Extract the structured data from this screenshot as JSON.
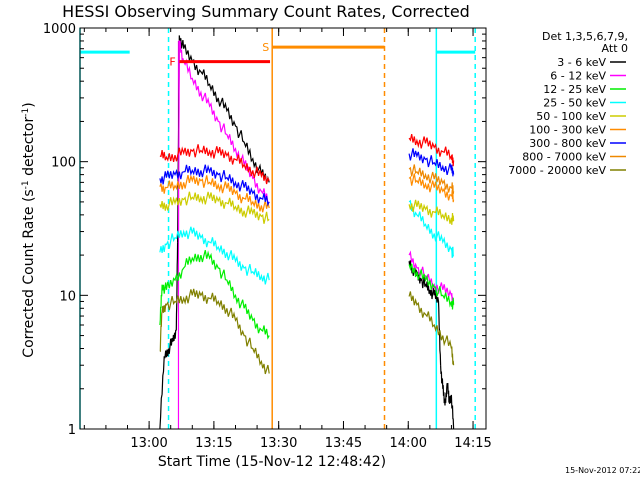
{
  "chart_data": {
    "type": "line",
    "title": "HESSI Observing Summary Count Rates, Corrected",
    "xlabel": "Start Time (15-Nov-12 12:48:42)",
    "ylabel": "Corrected Count Rate (s⁻¹ detector⁻¹)",
    "ylabel_main": "Corrected Count Rate (s",
    "ylabel_sup1": "-1",
    "ylabel_mid": " detector",
    "ylabel_sup2": "-1",
    "ylabel_end": ")",
    "yscale": "log",
    "ylim": [
      1,
      1000
    ],
    "xlim_min": [
      -16,
      78
    ],
    "y_ticks": [
      {
        "value": 1,
        "label": "1"
      },
      {
        "value": 10,
        "label": "10"
      },
      {
        "value": 100,
        "label": "100"
      },
      {
        "value": 1000,
        "label": "1000"
      }
    ],
    "x_ticks": [
      {
        "value": 0,
        "label": "13:00"
      },
      {
        "value": 15,
        "label": "13:15"
      },
      {
        "value": 30,
        "label": "13:30"
      },
      {
        "value": 45,
        "label": "13:45"
      },
      {
        "value": 60,
        "label": "14:00"
      },
      {
        "value": 75,
        "label": "14:15"
      }
    ],
    "legend": {
      "header": [
        "Det 1,3,5,6,7,9,",
        "Att 0"
      ],
      "position": "right"
    },
    "series": [
      {
        "name": "3 - 6 keV",
        "color": "#000000",
        "segments": [
          {
            "x": [
              2.5,
              3.5,
              4.5,
              5.5,
              6.3,
              6.6
            ],
            "y": [
              1,
              3.5,
              4.0,
              4.5,
              5.5,
              25
            ]
          },
          {
            "x": [
              6.6,
              7.0,
              8,
              10,
              12,
              14,
              16,
              18,
              20,
              22,
              24,
              26,
              27.8
            ],
            "y": [
              25,
              880,
              700,
              560,
              470,
              380,
              300,
              240,
              185,
              140,
              105,
              80,
              70
            ]
          },
          {
            "x": [
              60.2,
              61,
              62,
              63,
              64,
              65,
              66,
              67,
              67.5
            ],
            "y": [
              18,
              16,
              14,
              13,
              12,
              11,
              10,
              9,
              3
            ]
          },
          {
            "x": [
              67.5,
              68,
              68.5,
              69,
              69.5,
              70,
              70.5
            ],
            "y": [
              3,
              2,
              1.5,
              2.2,
              1.6,
              1.8,
              1
            ]
          }
        ]
      },
      {
        "name": "6 - 12 keV",
        "color": "#ff00ff",
        "segments": [
          {
            "x": [
              6.8,
              7,
              8,
              10,
              12,
              14,
              16,
              18,
              20,
              22,
              24,
              26,
              27.8
            ],
            "y": [
              30,
              800,
              560,
              420,
              330,
              260,
              200,
              160,
              125,
              95,
              75,
              60,
              50
            ]
          },
          {
            "x": [
              60.2,
              62,
              64,
              66,
              68,
              70,
              70.5
            ],
            "y": [
              20,
              16,
              14,
              12,
              11,
              10,
              9
            ]
          }
        ]
      },
      {
        "name": "12 - 25 keV",
        "color": "#00ee00",
        "segments": [
          {
            "x": [
              2.5,
              3,
              4,
              6,
              8,
              10,
              12,
              14,
              16,
              18,
              20,
              22,
              24,
              26,
              27.8
            ],
            "y": [
              6,
              12,
              11,
              13,
              16,
              19,
              20,
              19,
              16,
              13,
              10,
              8,
              6.5,
              5.5,
              5
            ]
          },
          {
            "x": [
              60.2,
              62,
              64,
              66,
              68,
              70,
              70.5
            ],
            "y": [
              17,
              15,
              13,
              11.5,
              10,
              9,
              8.5
            ]
          }
        ]
      },
      {
        "name": "25 - 50 keV",
        "color": "#00ffff",
        "segments": [
          {
            "x": [
              2.5,
              4,
              6,
              8,
              10,
              12,
              14,
              16,
              18,
              20,
              22,
              24,
              26,
              27.8
            ],
            "y": [
              21,
              24,
              27,
              30,
              29,
              27,
              25,
              23,
              21,
              18,
              16,
              15,
              14,
              13
            ]
          },
          {
            "x": [
              60.2,
              62,
              64,
              66,
              68,
              70,
              70.5
            ],
            "y": [
              50,
              40,
              34,
              29,
              25,
              22,
              20
            ]
          }
        ]
      },
      {
        "name": "50 - 100 keV",
        "color": "#cccc00",
        "segments": [
          {
            "x": [
              2.5,
              4,
              6,
              8,
              10,
              12,
              14,
              16,
              18,
              20,
              22,
              24,
              26,
              27.8
            ],
            "y": [
              48,
              48,
              49,
              52,
              54,
              54,
              53,
              51,
              49,
              46,
              43,
              41,
              39,
              37
            ]
          },
          {
            "x": [
              60.2,
              62,
              64,
              66,
              68,
              70,
              70.5
            ],
            "y": [
              48,
              46,
              44,
              42,
              40,
              38,
              36
            ]
          }
        ]
      },
      {
        "name": "100 - 300 keV",
        "color": "#ff8c00",
        "segments": [
          {
            "x": [
              2.5,
              4,
              6,
              8,
              10,
              12,
              14,
              16,
              18,
              20,
              22,
              24,
              26,
              27.8
            ],
            "y": [
              65,
              64,
              66,
              70,
              72,
              72,
              70,
              67,
              63,
              58,
              53,
              50,
              47,
              45
            ]
          },
          {
            "x": [
              60.2,
              62,
              64,
              66,
              68,
              70,
              70.5
            ],
            "y": [
              75,
              72,
              68,
              64,
              60,
              56,
              52
            ]
          }
        ]
      },
      {
        "name": "300 - 800 keV",
        "color": "#0000ff",
        "segments": [
          {
            "x": [
              2.5,
              4,
              6,
              8,
              10,
              12,
              14,
              16,
              18,
              20,
              22,
              24,
              26,
              27.8
            ],
            "y": [
              75,
              76,
              80,
              84,
              86,
              86,
              84,
              80,
              76,
              70,
              64,
              58,
              53,
              50
            ]
          },
          {
            "x": [
              60.2,
              62,
              64,
              66,
              68,
              70,
              70.5
            ],
            "y": [
              115,
              110,
              104,
              98,
              92,
              86,
              80
            ]
          }
        ]
      },
      {
        "name": "800 - 7000 keV",
        "color": "#ee8800",
        "segments": [
          {
            "x": [
              60.2,
              62,
              64,
              66,
              68,
              70,
              70.5
            ],
            "y": [
              88,
              84,
              80,
              74,
              69,
              64,
              60
            ]
          }
        ]
      },
      {
        "name": "7000 - 20000 keV",
        "color": "#808000",
        "segments": [
          {
            "x": [
              2.5,
              3,
              4,
              6,
              8,
              10,
              12,
              14,
              16,
              18,
              20,
              22,
              24,
              26,
              27.8
            ],
            "y": [
              3.8,
              7.5,
              8.5,
              9,
              9.5,
              10,
              10,
              9.5,
              9,
              8,
              6.5,
              5,
              4,
              3.2,
              2.6
            ]
          },
          {
            "x": [
              60.2,
              62,
              64,
              66,
              68,
              70,
              70.5
            ],
            "y": [
              9.8,
              8.5,
              7.2,
              6,
              5,
              4,
              3
            ]
          }
        ]
      },
      {
        "name": "",
        "color": "#ff0000",
        "segments": [
          {
            "x": [
              2.5,
              4,
              6,
              8,
              10,
              12,
              14,
              16,
              18,
              20,
              22,
              24,
              26,
              27.8
            ],
            "y": [
              110,
              108,
              112,
              116,
              120,
              121,
              120,
              116,
              111,
              104,
              95,
              86,
              78,
              72
            ]
          },
          {
            "x": [
              60.2,
              62,
              64,
              66,
              68,
              70,
              70.5
            ],
            "y": [
              150,
              144,
              137,
              128,
              119,
              110,
              102
            ]
          }
        ]
      }
    ],
    "flags": [
      {
        "label": "F",
        "color": "#ff0000",
        "x_start": 7,
        "x_end": 28,
        "y": 560
      },
      {
        "label": "S",
        "color": "#ff8c00",
        "x_start": 28.5,
        "x_end": 54.5,
        "y": 720
      }
    ],
    "interval_markers": [
      {
        "color": "#00ffff",
        "style": "solid",
        "x": -16
      },
      {
        "color": "#00ffff",
        "style": "dashed",
        "x": 4.5
      },
      {
        "color": "#00ffff",
        "style": "solid",
        "x": 66.5
      },
      {
        "color": "#00ffff",
        "style": "dashed",
        "x": 75.5
      },
      {
        "color": "#ff8c00",
        "style": "solid",
        "x": 28.5
      },
      {
        "color": "#ff8c00",
        "style": "dashed",
        "x": 54.5
      }
    ],
    "solid_bars": [
      {
        "color": "#00ffff",
        "x_start": -16,
        "x_end": -4.5,
        "y": 660
      },
      {
        "color": "#00ffff",
        "x_start": 66.5,
        "x_end": 75.5,
        "y": 660
      }
    ],
    "magenta_line_x": 6.8
  },
  "footer": {
    "timestamp": "15-Nov-2012 07:22"
  }
}
